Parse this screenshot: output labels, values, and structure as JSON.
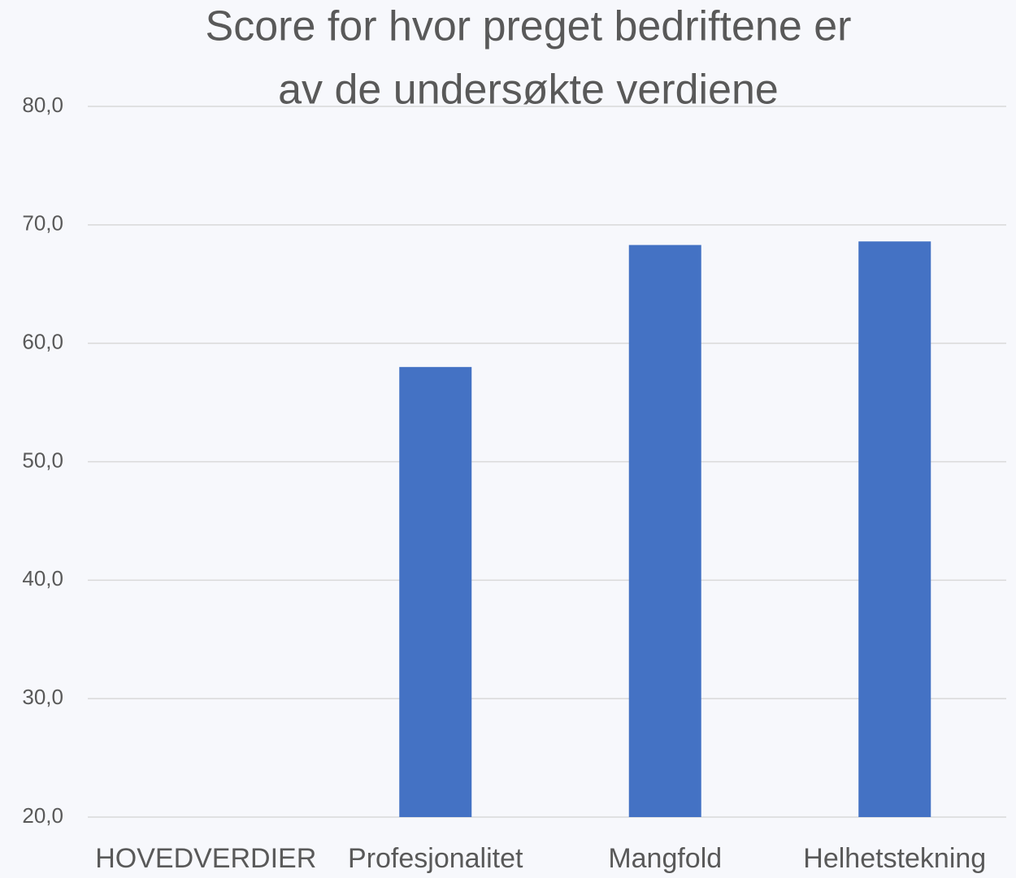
{
  "chart_data": {
    "type": "bar",
    "title": [
      "Score for hvor preget bedriftene er",
      "av de undersøkte verdiene"
    ],
    "categories": [
      "HOVEDVERDIER",
      "Profesjonalitet",
      "Mangfold",
      "Helhetstekning"
    ],
    "values": [
      null,
      58.0,
      68.3,
      68.6
    ],
    "color": "#4472c4",
    "ylim": [
      20,
      80
    ],
    "yticks": [
      {
        "value": 20,
        "label": "20,0"
      },
      {
        "value": 30,
        "label": "30,0"
      },
      {
        "value": 40,
        "label": "40,0"
      },
      {
        "value": 50,
        "label": "50,0"
      },
      {
        "value": 60,
        "label": "60,0"
      },
      {
        "value": 70,
        "label": "70,0"
      },
      {
        "value": 80,
        "label": "80,0"
      }
    ],
    "grid": true
  }
}
